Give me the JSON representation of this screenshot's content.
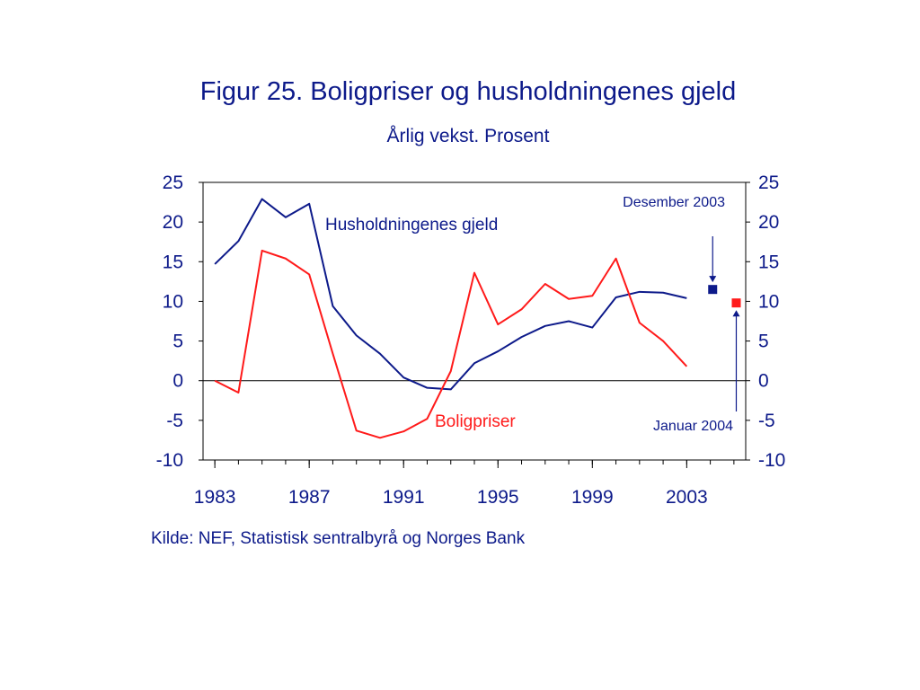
{
  "title": "Figur 25. Boligpriser og husholdningenes gjeld",
  "subtitle": "Årlig vekst. Prosent",
  "source": "Kilde: NEF, Statistisk sentralbyrå og Norges Bank",
  "chart_data": {
    "type": "line",
    "title": "Figur 25. Boligpriser og husholdningenes gjeld",
    "subtitle": "Årlig vekst. Prosent",
    "xlabel": "",
    "ylabel": "",
    "ylim": [
      -10,
      25
    ],
    "yticks": [
      "25",
      "20",
      "15",
      "10",
      "5",
      "0",
      "-5",
      "-10"
    ],
    "xticks": [
      "1983",
      "1987",
      "1991",
      "1995",
      "1999",
      "2003"
    ],
    "grid": false,
    "zero_line": true,
    "x": [
      1983,
      1984,
      1985,
      1986,
      1987,
      1988,
      1989,
      1990,
      1991,
      1992,
      1993,
      1994,
      1995,
      1996,
      1997,
      1998,
      1999,
      2000,
      2001,
      2002,
      2003
    ],
    "series": [
      {
        "name": "Husholdningenes gjeld",
        "color": "#0d1a8a",
        "values": [
          14.7,
          17.6,
          22.9,
          20.6,
          22.3,
          9.4,
          5.7,
          3.4,
          0.4,
          -0.9,
          -1.1,
          2.2,
          3.7,
          5.5,
          6.9,
          7.5,
          6.7,
          10.5,
          11.2,
          11.1,
          10.4
        ]
      },
      {
        "name": "Boligpriser",
        "color": "#ff1a1a",
        "values": [
          0.0,
          -1.5,
          16.4,
          15.4,
          13.4,
          3.4,
          -6.3,
          -7.2,
          -6.4,
          -4.8,
          1.2,
          13.6,
          7.1,
          9.0,
          12.2,
          10.3,
          10.7,
          15.4,
          7.3,
          5.0,
          1.8
        ]
      }
    ],
    "markers": [
      {
        "label": "Desember 2003",
        "series": "Husholdningenes gjeld",
        "x": 2004.1,
        "y": 11.5,
        "color": "#0d1a8a"
      },
      {
        "label": "Januar 2004",
        "series": "Boligpriser",
        "x": 2005.1,
        "y": 9.8,
        "color": "#ff1a1a"
      }
    ],
    "axis_color": "#000000",
    "tick_label_color": "#0d1a8a"
  }
}
